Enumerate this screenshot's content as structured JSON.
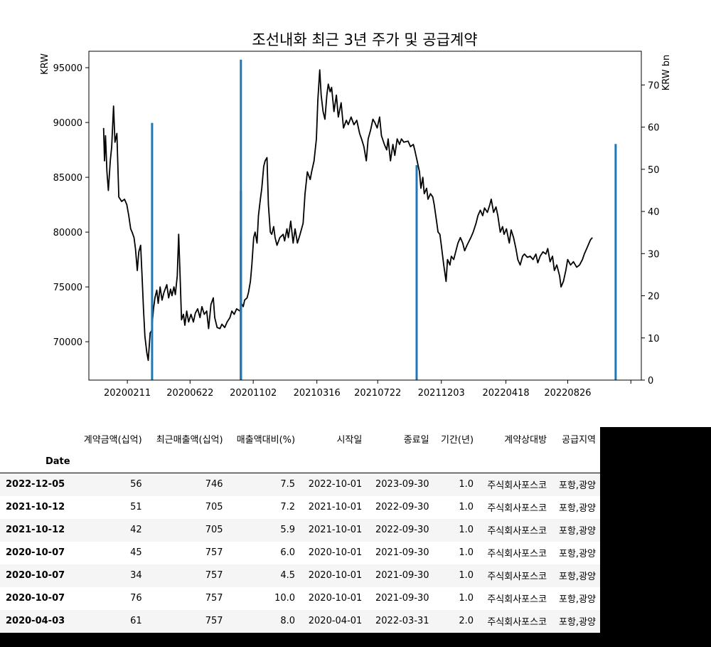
{
  "chart_data": {
    "type": "line",
    "title": "조선내화 최근 3년 주가 및 공급계약",
    "ylabel": "KRW",
    "y2label": "KRW bn",
    "ylim": [
      66500,
      96500
    ],
    "y2lim": [
      0,
      78
    ],
    "yticks": [
      70000,
      75000,
      80000,
      85000,
      90000,
      95000
    ],
    "y2ticks": [
      0,
      10,
      20,
      30,
      40,
      50,
      60,
      70
    ],
    "xlim": [
      "2019-11-22",
      "2023-01-28"
    ],
    "xticks": [
      "2020-02-11",
      "2020-06-22",
      "2020-11-02",
      "2021-03-16",
      "2021-07-22",
      "2021-12-03",
      "2022-04-18",
      "2022-08-26",
      "2023-01-06"
    ],
    "xtick_labels": [
      "20200211",
      "20200622",
      "20201102",
      "20210316",
      "20210722",
      "20211203",
      "20220418",
      "20220826",
      ""
    ],
    "grid": false,
    "series": [
      {
        "color": "#000000",
        "points": [
          [
            "2019-12-23",
            89500
          ],
          [
            "2019-12-25",
            86500
          ],
          [
            "2019-12-27",
            88800
          ],
          [
            "2019-12-30",
            85500
          ],
          [
            "2020-01-02",
            83800
          ],
          [
            "2020-01-06",
            86500
          ],
          [
            "2020-01-09",
            87800
          ],
          [
            "2020-01-13",
            91500
          ],
          [
            "2020-01-16",
            88200
          ],
          [
            "2020-01-20",
            89000
          ],
          [
            "2020-01-24",
            83200
          ],
          [
            "2020-01-30",
            82800
          ],
          [
            "2020-02-05",
            83000
          ],
          [
            "2020-02-10",
            82500
          ],
          [
            "2020-02-14",
            81500
          ],
          [
            "2020-02-18",
            80300
          ],
          [
            "2020-02-21",
            80000
          ],
          [
            "2020-02-25",
            79500
          ],
          [
            "2020-02-28",
            78500
          ],
          [
            "2020-03-03",
            76500
          ],
          [
            "2020-03-06",
            78200
          ],
          [
            "2020-03-10",
            78800
          ],
          [
            "2020-03-13",
            76000
          ],
          [
            "2020-03-16",
            73000
          ],
          [
            "2020-03-19",
            70500
          ],
          [
            "2020-03-23",
            69000
          ],
          [
            "2020-03-26",
            68300
          ],
          [
            "2020-03-30",
            70800
          ],
          [
            "2020-04-02",
            71000
          ],
          [
            "2020-04-06",
            73000
          ],
          [
            "2020-04-09",
            74000
          ],
          [
            "2020-04-13",
            74700
          ],
          [
            "2020-04-16",
            73500
          ],
          [
            "2020-04-20",
            75000
          ],
          [
            "2020-04-24",
            73800
          ],
          [
            "2020-04-28",
            74500
          ],
          [
            "2020-05-04",
            75200
          ],
          [
            "2020-05-08",
            74000
          ],
          [
            "2020-05-12",
            74800
          ],
          [
            "2020-05-15",
            74200
          ],
          [
            "2020-05-19",
            75000
          ],
          [
            "2020-05-22",
            74300
          ],
          [
            "2020-05-26",
            76000
          ],
          [
            "2020-05-29",
            79800
          ],
          [
            "2020-06-01",
            76000
          ],
          [
            "2020-06-04",
            72000
          ],
          [
            "2020-06-08",
            72500
          ],
          [
            "2020-06-11",
            71500
          ],
          [
            "2020-06-15",
            72800
          ],
          [
            "2020-06-19",
            71800
          ],
          [
            "2020-06-24",
            72500
          ],
          [
            "2020-06-29",
            71800
          ],
          [
            "2020-07-03",
            72600
          ],
          [
            "2020-07-08",
            73000
          ],
          [
            "2020-07-13",
            72200
          ],
          [
            "2020-07-17",
            73200
          ],
          [
            "2020-07-22",
            72500
          ],
          [
            "2020-07-27",
            72800
          ],
          [
            "2020-07-31",
            71200
          ],
          [
            "2020-08-05",
            73400
          ],
          [
            "2020-08-10",
            74000
          ],
          [
            "2020-08-13",
            72200
          ],
          [
            "2020-08-18",
            71300
          ],
          [
            "2020-08-24",
            71200
          ],
          [
            "2020-08-28",
            71600
          ],
          [
            "2020-09-03",
            71300
          ],
          [
            "2020-09-08",
            71800
          ],
          [
            "2020-09-14",
            72200
          ],
          [
            "2020-09-18",
            72800
          ],
          [
            "2020-09-23",
            72500
          ],
          [
            "2020-09-28",
            73000
          ],
          [
            "2020-10-05",
            72800
          ],
          [
            "2020-10-08",
            73500
          ],
          [
            "2020-10-12",
            73200
          ],
          [
            "2020-10-15",
            73800
          ],
          [
            "2020-10-20",
            74000
          ],
          [
            "2020-10-23",
            74500
          ],
          [
            "2020-10-27",
            75500
          ],
          [
            "2020-10-30",
            77000
          ],
          [
            "2020-11-03",
            79500
          ],
          [
            "2020-11-06",
            80000
          ],
          [
            "2020-11-10",
            79000
          ],
          [
            "2020-11-13",
            81500
          ],
          [
            "2020-11-17",
            83000
          ],
          [
            "2020-11-20",
            84000
          ],
          [
            "2020-11-24",
            86000
          ],
          [
            "2020-11-27",
            86500
          ],
          [
            "2020-12-01",
            86800
          ],
          [
            "2020-12-04",
            82500
          ],
          [
            "2020-12-08",
            80000
          ],
          [
            "2020-12-11",
            79800
          ],
          [
            "2020-12-15",
            80500
          ],
          [
            "2020-12-18",
            79500
          ],
          [
            "2020-12-22",
            78800
          ],
          [
            "2020-12-28",
            79500
          ],
          [
            "2021-01-04",
            79800
          ],
          [
            "2021-01-07",
            79200
          ],
          [
            "2021-01-12",
            80300
          ],
          [
            "2021-01-15",
            79500
          ],
          [
            "2021-01-20",
            81000
          ],
          [
            "2021-01-25",
            79000
          ],
          [
            "2021-01-29",
            80300
          ],
          [
            "2021-02-03",
            79000
          ],
          [
            "2021-02-08",
            79700
          ],
          [
            "2021-02-15",
            80800
          ],
          [
            "2021-02-19",
            83500
          ],
          [
            "2021-02-24",
            85500
          ],
          [
            "2021-03-02",
            84800
          ],
          [
            "2021-03-05",
            85500
          ],
          [
            "2021-03-10",
            86500
          ],
          [
            "2021-03-15",
            88500
          ],
          [
            "2021-03-18",
            92000
          ],
          [
            "2021-03-22",
            94800
          ],
          [
            "2021-03-25",
            92500
          ],
          [
            "2021-03-29",
            91000
          ],
          [
            "2021-04-02",
            90300
          ],
          [
            "2021-04-06",
            92500
          ],
          [
            "2021-04-09",
            93500
          ],
          [
            "2021-04-13",
            92800
          ],
          [
            "2021-04-16",
            93200
          ],
          [
            "2021-04-21",
            91000
          ],
          [
            "2021-04-26",
            92500
          ],
          [
            "2021-04-30",
            90500
          ],
          [
            "2021-05-06",
            91800
          ],
          [
            "2021-05-11",
            89500
          ],
          [
            "2021-05-17",
            90200
          ],
          [
            "2021-05-21",
            89800
          ],
          [
            "2021-05-27",
            90500
          ],
          [
            "2021-06-02",
            89800
          ],
          [
            "2021-06-08",
            90200
          ],
          [
            "2021-06-14",
            89000
          ],
          [
            "2021-06-18",
            88500
          ],
          [
            "2021-06-23",
            87800
          ],
          [
            "2021-06-28",
            86500
          ],
          [
            "2021-07-02",
            88500
          ],
          [
            "2021-07-07",
            89300
          ],
          [
            "2021-07-12",
            90300
          ],
          [
            "2021-07-16",
            90000
          ],
          [
            "2021-07-21",
            89500
          ],
          [
            "2021-07-26",
            90500
          ],
          [
            "2021-07-30",
            88800
          ],
          [
            "2021-08-05",
            88000
          ],
          [
            "2021-08-10",
            87500
          ],
          [
            "2021-08-13",
            88500
          ],
          [
            "2021-08-18",
            86500
          ],
          [
            "2021-08-23",
            88000
          ],
          [
            "2021-08-27",
            87000
          ],
          [
            "2021-09-01",
            88500
          ],
          [
            "2021-09-06",
            88000
          ],
          [
            "2021-09-10",
            88500
          ],
          [
            "2021-09-15",
            88200
          ],
          [
            "2021-09-24",
            88300
          ],
          [
            "2021-09-29",
            87800
          ],
          [
            "2021-10-05",
            88000
          ],
          [
            "2021-10-08",
            87500
          ],
          [
            "2021-10-13",
            86500
          ],
          [
            "2021-10-18",
            85500
          ],
          [
            "2021-10-21",
            84000
          ],
          [
            "2021-10-25",
            85000
          ],
          [
            "2021-10-28",
            83500
          ],
          [
            "2021-11-02",
            84000
          ],
          [
            "2021-11-05",
            83000
          ],
          [
            "2021-11-10",
            83500
          ],
          [
            "2021-11-15",
            83200
          ],
          [
            "2021-11-18",
            82500
          ],
          [
            "2021-11-23",
            81000
          ],
          [
            "2021-11-26",
            80000
          ],
          [
            "2021-11-30",
            79800
          ],
          [
            "2021-12-03",
            78800
          ],
          [
            "2021-12-08",
            77000
          ],
          [
            "2021-12-13",
            75500
          ],
          [
            "2021-12-16",
            77500
          ],
          [
            "2021-12-21",
            77000
          ],
          [
            "2021-12-24",
            77800
          ],
          [
            "2021-12-29",
            77500
          ],
          [
            "2022-01-04",
            78500
          ],
          [
            "2022-01-07",
            79000
          ],
          [
            "2022-01-12",
            79500
          ],
          [
            "2022-01-17",
            79000
          ],
          [
            "2022-01-21",
            78300
          ],
          [
            "2022-01-26",
            78800
          ],
          [
            "2022-02-03",
            79500
          ],
          [
            "2022-02-08",
            80000
          ],
          [
            "2022-02-14",
            80800
          ],
          [
            "2022-02-18",
            81500
          ],
          [
            "2022-02-23",
            82000
          ],
          [
            "2022-02-28",
            81500
          ],
          [
            "2022-03-04",
            82200
          ],
          [
            "2022-03-10",
            81800
          ],
          [
            "2022-03-15",
            82500
          ],
          [
            "2022-03-18",
            83000
          ],
          [
            "2022-03-23",
            81800
          ],
          [
            "2022-03-28",
            82300
          ],
          [
            "2022-04-01",
            81500
          ],
          [
            "2022-04-06",
            80000
          ],
          [
            "2022-04-11",
            80500
          ],
          [
            "2022-04-14",
            79800
          ],
          [
            "2022-04-19",
            80300
          ],
          [
            "2022-04-25",
            79000
          ],
          [
            "2022-04-29",
            80200
          ],
          [
            "2022-05-04",
            79500
          ],
          [
            "2022-05-09",
            78500
          ],
          [
            "2022-05-13",
            77500
          ],
          [
            "2022-05-18",
            77000
          ],
          [
            "2022-05-23",
            77800
          ],
          [
            "2022-05-27",
            78000
          ],
          [
            "2022-06-02",
            77700
          ],
          [
            "2022-06-08",
            77800
          ],
          [
            "2022-06-14",
            77500
          ],
          [
            "2022-06-20",
            78000
          ],
          [
            "2022-06-24",
            77200
          ],
          [
            "2022-06-29",
            77800
          ],
          [
            "2022-07-05",
            78200
          ],
          [
            "2022-07-11",
            78000
          ],
          [
            "2022-07-15",
            78500
          ],
          [
            "2022-07-20",
            77300
          ],
          [
            "2022-07-25",
            77800
          ],
          [
            "2022-07-29",
            76500
          ],
          [
            "2022-08-03",
            77000
          ],
          [
            "2022-08-09",
            76000
          ],
          [
            "2022-08-12",
            75000
          ],
          [
            "2022-08-17",
            75500
          ],
          [
            "2022-08-22",
            76500
          ],
          [
            "2022-08-26",
            77500
          ],
          [
            "2022-09-01",
            77000
          ],
          [
            "2022-09-07",
            77300
          ],
          [
            "2022-09-14",
            76800
          ],
          [
            "2022-09-20",
            77000
          ],
          [
            "2022-09-26",
            77500
          ],
          [
            "2022-09-30",
            78000
          ],
          [
            "2022-10-05",
            78500
          ],
          [
            "2022-10-10",
            79000
          ],
          [
            "2022-10-13",
            79300
          ],
          [
            "2022-10-17",
            79500
          ]
        ]
      },
      {
        "type": "bar",
        "axis": "right",
        "color": "#1f77b4",
        "points": [
          [
            "2020-04-03",
            61
          ],
          [
            "2020-10-07",
            76
          ],
          [
            "2020-10-07",
            34
          ],
          [
            "2020-10-07",
            45
          ],
          [
            "2021-10-12",
            51
          ],
          [
            "2021-10-12",
            42
          ],
          [
            "2022-12-05",
            56
          ]
        ]
      }
    ]
  },
  "table": {
    "columns": [
      "계약금액(십억)",
      "최근매출액(십억)",
      "매출액대비(%)",
      "시작일",
      "종료일",
      "기간(년)",
      "계약상대방",
      "공급지역"
    ],
    "index_name": "Date",
    "rows": [
      {
        "date": "2022-12-05",
        "cells": [
          "56",
          "746",
          "7.5",
          "2022-10-01",
          "2023-09-30",
          "1.0",
          "주식회사포스코",
          "포항,광양"
        ]
      },
      {
        "date": "2021-10-12",
        "cells": [
          "51",
          "705",
          "7.2",
          "2021-10-01",
          "2022-09-30",
          "1.0",
          "주식회사포스코",
          "포항,광양"
        ]
      },
      {
        "date": "2021-10-12",
        "cells": [
          "42",
          "705",
          "5.9",
          "2021-10-01",
          "2022-09-30",
          "1.0",
          "주식회사포스코",
          "포항,광양"
        ]
      },
      {
        "date": "2020-10-07",
        "cells": [
          "45",
          "757",
          "6.0",
          "2020-10-01",
          "2021-09-30",
          "1.0",
          "주식회사포스코",
          "포항,광양"
        ]
      },
      {
        "date": "2020-10-07",
        "cells": [
          "34",
          "757",
          "4.5",
          "2020-10-01",
          "2021-09-30",
          "1.0",
          "주식회사포스코",
          "포항,광양"
        ]
      },
      {
        "date": "2020-10-07",
        "cells": [
          "76",
          "757",
          "10.0",
          "2020-10-01",
          "2021-09-30",
          "1.0",
          "주식회사포스코",
          "포항,광양"
        ]
      },
      {
        "date": "2020-04-03",
        "cells": [
          "61",
          "757",
          "8.0",
          "2020-04-01",
          "2022-03-31",
          "2.0",
          "주식회사포스코",
          "포항,광양"
        ]
      }
    ]
  }
}
